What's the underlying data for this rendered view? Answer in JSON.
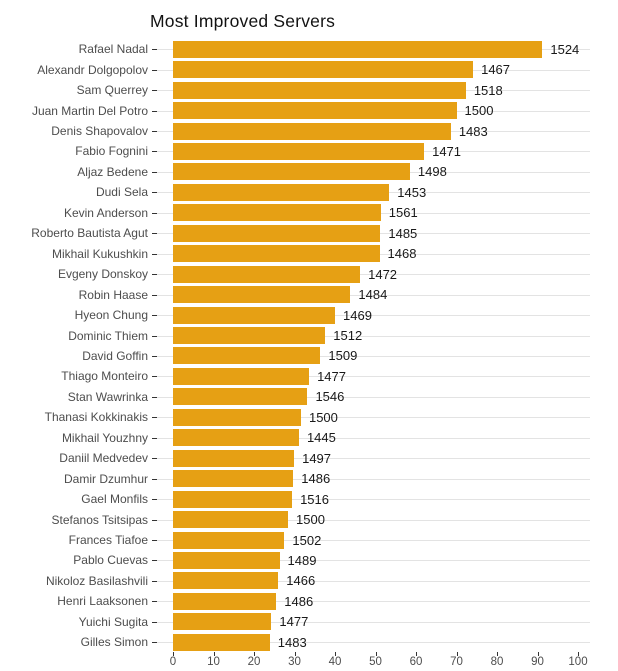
{
  "chart_data": {
    "type": "bar",
    "orientation": "horizontal",
    "title": "Most Improved Servers",
    "xlabel": "",
    "ylabel": "",
    "xlim": [
      0,
      100
    ],
    "x_ticks": [
      0,
      10,
      20,
      30,
      40,
      50,
      60,
      70,
      80,
      90,
      100
    ],
    "grid": "horizontal-major-only",
    "legend": "none",
    "categories": [
      "Rafael Nadal",
      "Alexandr Dolgopolov",
      "Sam Querrey",
      "Juan Martin Del Potro",
      "Denis Shapovalov",
      "Fabio Fognini",
      "Aljaz Bedene",
      "Dudi Sela",
      "Kevin Anderson",
      "Roberto Bautista Agut",
      "Mikhail Kukushkin",
      "Evgeny Donskoy",
      "Robin Haase",
      "Hyeon Chung",
      "Dominic Thiem",
      "David Goffin",
      "Thiago Monteiro",
      "Stan Wawrinka",
      "Thanasi Kokkinakis",
      "Mikhail Youzhny",
      "Daniil Medvedev",
      "Damir Dzumhur",
      "Gael Monfils",
      "Stefanos Tsitsipas",
      "Frances Tiafoe",
      "Pablo Cuevas",
      "Nikoloz Basilashvili",
      "Henri Laaksonen",
      "Yuichi Sugita",
      "Gilles Simon"
    ],
    "values": [
      91.2,
      74.1,
      72.3,
      70.0,
      68.6,
      62.0,
      58.5,
      53.4,
      51.3,
      51.2,
      51.0,
      46.2,
      43.8,
      40.0,
      37.6,
      36.4,
      33.6,
      33.2,
      31.6,
      31.1,
      29.9,
      29.7,
      29.4,
      28.4,
      27.5,
      26.3,
      26.0,
      25.5,
      24.3,
      23.9
    ],
    "bar_labels": [
      "1524",
      "1467",
      "1518",
      "1500",
      "1483",
      "1471",
      "1498",
      "1453",
      "1561",
      "1485",
      "1468",
      "1472",
      "1484",
      "1469",
      "1512",
      "1509",
      "1477",
      "1546",
      "1500",
      "1445",
      "1497",
      "1486",
      "1516",
      "1500",
      "1502",
      "1489",
      "1466",
      "1486",
      "1477",
      "1483"
    ],
    "colors": {
      "bar": "#E6A014",
      "gridline": "#E3E3E3",
      "axis_text": "#4D4D4D",
      "value_text": "#191919",
      "tick": "#333333",
      "background": "#FFFFFF"
    }
  }
}
